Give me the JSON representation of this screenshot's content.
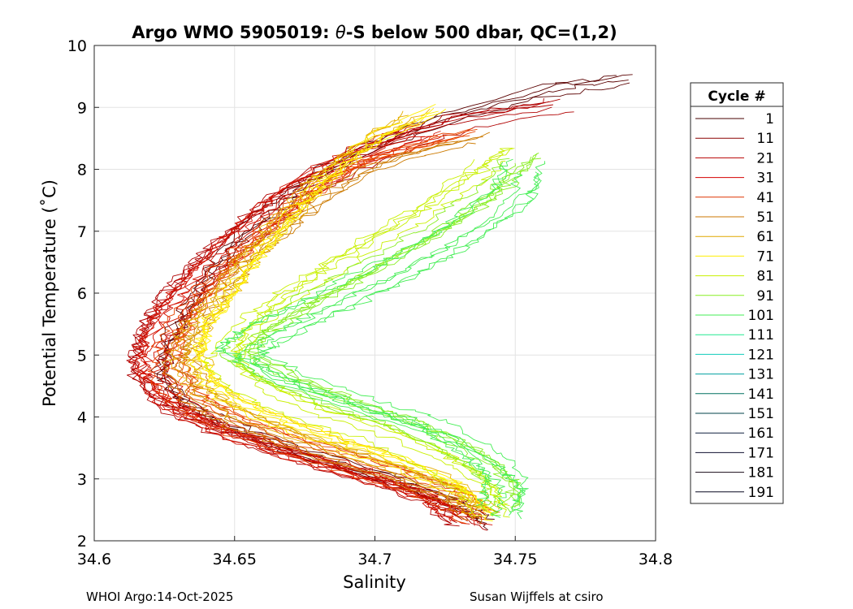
{
  "chart_data": {
    "type": "line",
    "title_pre": "Argo WMO 5905019: ",
    "title_theta": "θ",
    "title_post": "-S below 500 dbar,  QC=(1,2)",
    "xlabel": "Salinity",
    "ylabel": "Potential Temperature (˚C)",
    "xlim": [
      34.6,
      34.8
    ],
    "ylim": [
      2,
      10
    ],
    "xticks": [
      34.6,
      34.65,
      34.7,
      34.75,
      34.8
    ],
    "xtick_labels": [
      "34.6",
      "34.65",
      "34.7",
      "34.75",
      "34.8"
    ],
    "yticks": [
      2,
      3,
      4,
      5,
      6,
      7,
      8,
      9,
      10
    ],
    "ytick_labels": [
      "2",
      "3",
      "4",
      "5",
      "6",
      "7",
      "8",
      "9",
      "10"
    ],
    "grid": true,
    "legend_title": "Cycle #",
    "legend_position": "right-outside",
    "series": [
      {
        "name": "1",
        "color": "#4a0000"
      },
      {
        "name": "11",
        "color": "#8c0000"
      },
      {
        "name": "21",
        "color": "#b80000"
      },
      {
        "name": "31",
        "color": "#d40000"
      },
      {
        "name": "41",
        "color": "#dd3300"
      },
      {
        "name": "51",
        "color": "#cc7700"
      },
      {
        "name": "61",
        "color": "#e0a800"
      },
      {
        "name": "71",
        "color": "#ffee00"
      },
      {
        "name": "81",
        "color": "#c8f000"
      },
      {
        "name": "91",
        "color": "#88ee22"
      },
      {
        "name": "101",
        "color": "#44ee55"
      },
      {
        "name": "111",
        "color": "#22e890"
      },
      {
        "name": "121",
        "color": "#11ccbb"
      },
      {
        "name": "131",
        "color": "#00a0a0"
      },
      {
        "name": "141",
        "color": "#007060"
      },
      {
        "name": "151",
        "color": "#004048"
      },
      {
        "name": "161",
        "color": "#102040"
      },
      {
        "name": "171",
        "color": "#101030"
      },
      {
        "name": "181",
        "color": "#180a18"
      },
      {
        "name": "191",
        "color": "#080820"
      }
    ],
    "profile_groups": [
      {
        "color": "#5a0000",
        "count": 4,
        "spread": 0.004,
        "offset": 0.01,
        "path": [
          [
            34.738,
            2.3
          ],
          [
            34.728,
            2.6
          ],
          [
            34.705,
            3.0
          ],
          [
            34.675,
            3.4
          ],
          [
            34.65,
            3.8
          ],
          [
            34.632,
            4.2
          ],
          [
            34.622,
            4.7
          ],
          [
            34.625,
            5.2
          ],
          [
            34.632,
            5.8
          ],
          [
            34.64,
            6.4
          ],
          [
            34.652,
            7.0
          ],
          [
            34.668,
            7.6
          ],
          [
            34.688,
            8.2
          ],
          [
            34.72,
            8.8
          ],
          [
            34.76,
            9.3
          ],
          [
            34.79,
            9.5
          ]
        ]
      },
      {
        "color": "#b00000",
        "count": 6,
        "spread": 0.006,
        "offset": 0.0,
        "path": [
          [
            34.733,
            2.3
          ],
          [
            34.722,
            2.7
          ],
          [
            34.7,
            3.05
          ],
          [
            34.67,
            3.45
          ],
          [
            34.645,
            3.85
          ],
          [
            34.626,
            4.25
          ],
          [
            34.618,
            4.8
          ],
          [
            34.62,
            5.3
          ],
          [
            34.628,
            5.9
          ],
          [
            34.64,
            6.5
          ],
          [
            34.655,
            7.1
          ],
          [
            34.672,
            7.7
          ],
          [
            34.698,
            8.3
          ],
          [
            34.73,
            8.8
          ],
          [
            34.77,
            9.1
          ]
        ]
      },
      {
        "color": "#d41000",
        "count": 8,
        "spread": 0.007,
        "offset": -0.002,
        "path": [
          [
            34.735,
            2.35
          ],
          [
            34.722,
            2.7
          ],
          [
            34.7,
            3.05
          ],
          [
            34.67,
            3.45
          ],
          [
            34.645,
            3.85
          ],
          [
            34.628,
            4.25
          ],
          [
            34.62,
            4.75
          ],
          [
            34.622,
            5.25
          ],
          [
            34.63,
            5.85
          ],
          [
            34.642,
            6.45
          ],
          [
            34.656,
            7.05
          ],
          [
            34.672,
            7.65
          ],
          [
            34.694,
            8.25
          ],
          [
            34.722,
            8.7
          ]
        ]
      },
      {
        "color": "#e84400",
        "count": 6,
        "spread": 0.006,
        "offset": 0.003,
        "path": [
          [
            34.737,
            2.4
          ],
          [
            34.725,
            2.75
          ],
          [
            34.703,
            3.1
          ],
          [
            34.673,
            3.5
          ],
          [
            34.648,
            3.9
          ],
          [
            34.632,
            4.3
          ],
          [
            34.626,
            4.8
          ],
          [
            34.628,
            5.3
          ],
          [
            34.636,
            5.9
          ],
          [
            34.648,
            6.5
          ],
          [
            34.662,
            7.1
          ],
          [
            34.678,
            7.7
          ],
          [
            34.7,
            8.2
          ],
          [
            34.735,
            8.6
          ]
        ]
      },
      {
        "color": "#cc7a00",
        "count": 4,
        "spread": 0.006,
        "offset": 0.006,
        "path": [
          [
            34.738,
            2.4
          ],
          [
            34.726,
            2.8
          ],
          [
            34.705,
            3.15
          ],
          [
            34.676,
            3.55
          ],
          [
            34.652,
            3.95
          ],
          [
            34.636,
            4.35
          ],
          [
            34.63,
            4.85
          ],
          [
            34.633,
            5.35
          ],
          [
            34.642,
            5.9
          ],
          [
            34.652,
            6.5
          ],
          [
            34.668,
            7.1
          ],
          [
            34.684,
            7.7
          ],
          [
            34.705,
            8.2
          ],
          [
            34.74,
            8.6
          ]
        ]
      },
      {
        "color": "#e6b000",
        "count": 5,
        "spread": 0.007,
        "offset": 0.008,
        "path": [
          [
            34.74,
            2.4
          ],
          [
            34.729,
            2.8
          ],
          [
            34.707,
            3.2
          ],
          [
            34.68,
            3.6
          ],
          [
            34.656,
            4.0
          ],
          [
            34.64,
            4.4
          ],
          [
            34.634,
            4.9
          ],
          [
            34.637,
            5.4
          ],
          [
            34.646,
            5.95
          ],
          [
            34.656,
            6.55
          ],
          [
            34.668,
            7.15
          ],
          [
            34.68,
            7.75
          ],
          [
            34.695,
            8.3
          ],
          [
            34.715,
            8.9
          ]
        ]
      },
      {
        "color": "#fff000",
        "count": 5,
        "spread": 0.007,
        "offset": 0.01,
        "path": [
          [
            34.741,
            2.4
          ],
          [
            34.73,
            2.85
          ],
          [
            34.709,
            3.25
          ],
          [
            34.683,
            3.65
          ],
          [
            34.659,
            4.05
          ],
          [
            34.643,
            4.45
          ],
          [
            34.637,
            4.95
          ],
          [
            34.64,
            5.45
          ],
          [
            34.649,
            6.0
          ],
          [
            34.659,
            6.6
          ],
          [
            34.67,
            7.2
          ],
          [
            34.682,
            7.8
          ],
          [
            34.698,
            8.4
          ],
          [
            34.725,
            9.0
          ]
        ]
      },
      {
        "color": "#c8f000",
        "count": 5,
        "spread": 0.008,
        "offset": 0.012,
        "path": [
          [
            34.742,
            2.45
          ],
          [
            34.736,
            2.9
          ],
          [
            34.722,
            3.3
          ],
          [
            34.7,
            3.75
          ],
          [
            34.675,
            4.1
          ],
          [
            34.656,
            4.5
          ],
          [
            34.646,
            4.9
          ],
          [
            34.65,
            5.3
          ],
          [
            34.662,
            5.8
          ],
          [
            34.678,
            6.3
          ],
          [
            34.696,
            6.8
          ],
          [
            34.714,
            7.3
          ],
          [
            34.73,
            7.8
          ],
          [
            34.745,
            8.3
          ]
        ]
      },
      {
        "color": "#88ee22",
        "count": 6,
        "spread": 0.008,
        "offset": 0.015,
        "path": [
          [
            34.744,
            2.45
          ],
          [
            34.744,
            2.9
          ],
          [
            34.733,
            3.3
          ],
          [
            34.712,
            3.8
          ],
          [
            34.688,
            4.15
          ],
          [
            34.666,
            4.55
          ],
          [
            34.65,
            4.95
          ],
          [
            34.656,
            5.3
          ],
          [
            34.672,
            5.75
          ],
          [
            34.69,
            6.2
          ],
          [
            34.71,
            6.7
          ],
          [
            34.728,
            7.2
          ],
          [
            34.742,
            7.7
          ],
          [
            34.752,
            8.2
          ]
        ]
      },
      {
        "color": "#44ee55",
        "count": 6,
        "spread": 0.008,
        "offset": 0.017,
        "path": [
          [
            34.745,
            2.5
          ],
          [
            34.748,
            2.95
          ],
          [
            34.738,
            3.35
          ],
          [
            34.72,
            3.85
          ],
          [
            34.694,
            4.2
          ],
          [
            34.67,
            4.6
          ],
          [
            34.652,
            5.0
          ],
          [
            34.66,
            5.3
          ],
          [
            34.678,
            5.7
          ],
          [
            34.698,
            6.15
          ],
          [
            34.718,
            6.6
          ],
          [
            34.736,
            7.1
          ],
          [
            34.75,
            7.6
          ],
          [
            34.755,
            8.1
          ]
        ]
      }
    ]
  },
  "footer": {
    "left": "WHOI Argo:14-Oct-2025",
    "right": "Susan Wijffels at csiro"
  }
}
